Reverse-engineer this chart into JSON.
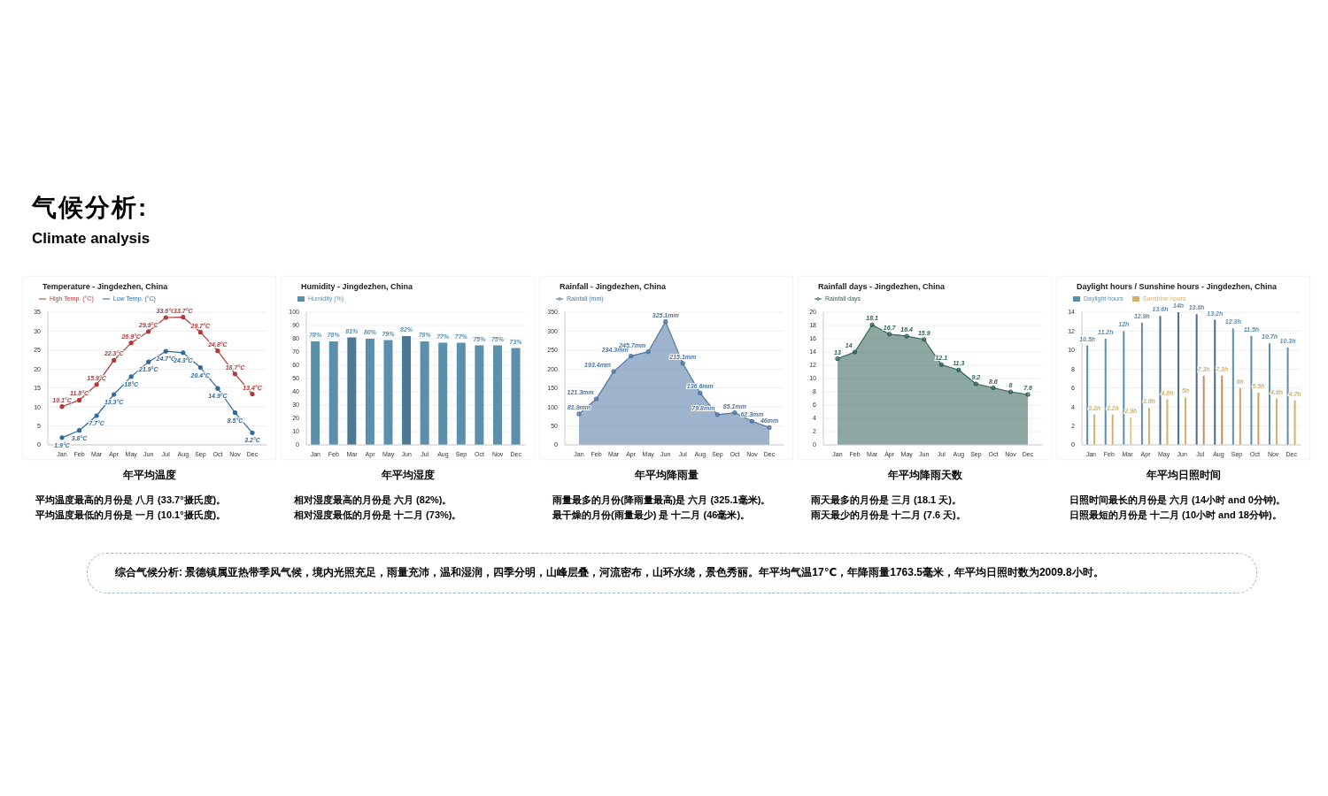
{
  "chart_data": [
    {
      "type": "other",
      "title": "气候分析:",
      "subtitle": "Climate analysis"
    },
    {
      "type": "line",
      "title": "Temperature - Jingdezhen, China",
      "categories": [
        "Jan",
        "Feb",
        "Mar",
        "Apr",
        "May",
        "Jun",
        "Jul",
        "Aug",
        "Sep",
        "Oct",
        "Nov",
        "Dec"
      ],
      "ylim": [
        0,
        35
      ],
      "yticks": [
        0,
        5,
        10,
        15,
        20,
        25,
        30,
        35
      ],
      "grid": "y",
      "legend": "top left",
      "marker": "circle",
      "series": [
        {
          "name": "Low Temp. (°C)",
          "color": "#2f6aa0",
          "values": [
            1.9,
            3.8,
            7.7,
            13.3,
            18,
            21.9,
            24.7,
            24.3,
            20.4,
            14.9,
            8.5,
            3.2
          ],
          "value_labels": [
            "1.9°C",
            "3.8°C",
            "7.7°C",
            "13.3°C",
            "18°C",
            "21.9°C",
            "24.7°C",
            "24.3°C",
            "20.4°C",
            "14.9°C",
            "8.5°C",
            "3.2°C"
          ]
        },
        {
          "name": "High Temp. (°C)",
          "color": "#b23a3a",
          "values": [
            10.1,
            11.8,
            15.9,
            22.3,
            26.9,
            29.9,
            33.6,
            33.7,
            29.7,
            24.8,
            18.7,
            13.4
          ],
          "value_labels": [
            "10.1°C",
            "11.8°C",
            "15.9°C",
            "22.3°C",
            "26.9°C",
            "29.9°C",
            "33.6°C",
            "33.7°C",
            "29.7°C",
            "24.8°C",
            "18.7°C",
            "13.4°C"
          ]
        }
      ],
      "annotations": [
        "年平均温度",
        "平均温度最高的月份是 八月 (33.7°摄氏度)。",
        "平均温度最低的月份是 一月 (10.1°摄氏度)。"
      ]
    },
    {
      "type": "bar",
      "title": "Humidity - Jingdezhen, China",
      "categories": [
        "Jan",
        "Feb",
        "Mar",
        "Apr",
        "May",
        "Jun",
        "Jul",
        "Aug",
        "Sep",
        "Oct",
        "Nov",
        "Dec"
      ],
      "ylim": [
        0,
        100
      ],
      "yticks": [
        0,
        10,
        20,
        30,
        40,
        50,
        60,
        70,
        80,
        90,
        100
      ],
      "grid": "y",
      "legend": "top left",
      "series": [
        {
          "name": "Humidity (%)",
          "color": "#5b8fac",
          "colors": [
            "#5b8fac",
            "#5b8fac",
            "#4d7894",
            "#5b8fac",
            "#5b8fac",
            "#4d7894",
            "#5b8fac",
            "#5b8fac",
            "#5b8fac",
            "#5b8fac",
            "#5b8fac",
            "#5b8fac"
          ],
          "values": [
            78,
            78,
            81,
            80,
            79,
            82,
            78,
            77,
            77,
            75,
            75,
            73
          ],
          "value_labels": [
            "78%",
            "78%",
            "81%",
            "80%",
            "79%",
            "82%",
            "78%",
            "77%",
            "77%",
            "75%",
            "75%",
            "73%"
          ]
        }
      ],
      "annotations": [
        "年平均湿度",
        "相对湿度最高的月份是 六月 (82%)。",
        "相对湿度最低的月份是 十二月 (73%)。"
      ]
    },
    {
      "type": "area",
      "title": "Rainfall - Jingdezhen, China",
      "categories": [
        "Jan",
        "Feb",
        "Mar",
        "Apr",
        "May",
        "Jun",
        "Jul",
        "Aug",
        "Sep",
        "Oct",
        "Nov",
        "Dec"
      ],
      "ylim": [
        0,
        350
      ],
      "yticks": [
        0,
        50,
        100,
        150,
        200,
        250,
        300,
        350
      ],
      "grid": "y",
      "legend": "top left",
      "marker": "circle",
      "series": [
        {
          "name": "Rainfall (mm)",
          "color": "#4f76a3",
          "values": [
            81.9,
            121.3,
            193.4,
            234.3,
            245.7,
            325.1,
            215.1,
            136.6,
            79.8,
            85.1,
            62.3,
            46
          ],
          "value_labels": [
            "81.9mm",
            "121.3mm",
            "193.4mm",
            "234.3mm",
            "245.7mm",
            "325.1mm",
            "215.1mm",
            "136.6mm",
            "79.8mm",
            "85.1mm",
            "62.3mm",
            "46mm"
          ]
        }
      ],
      "annotations": [
        "年平均降雨量",
        "雨量最多的月份(降雨量最高)是 六月 (325.1毫米)。",
        "最干燥的月份(雨量最少) 是 十二月 (46毫米)。"
      ]
    },
    {
      "type": "area",
      "title": "Rainfall days - Jingdezhen, China",
      "categories": [
        "Jan",
        "Feb",
        "Mar",
        "Apr",
        "May",
        "Jun",
        "Jul",
        "Aug",
        "Sep",
        "Oct",
        "Nov",
        "Dec"
      ],
      "ylim": [
        0,
        20
      ],
      "yticks": [
        0,
        2,
        4,
        6,
        8,
        10,
        12,
        14,
        16,
        18,
        20
      ],
      "grid": "y",
      "legend": "top left",
      "marker": "circle",
      "data_labels": true,
      "series": [
        {
          "name": "Rainfall days",
          "color": "#2f6155",
          "values": [
            13,
            14,
            18.1,
            16.7,
            16.4,
            15.9,
            12.1,
            11.3,
            9.2,
            8.6,
            8,
            7.6
          ]
        }
      ],
      "annotations": [
        "年平均降雨天数",
        "雨天最多的月份是 三月 (18.1 天)。",
        "雨天最少的月份是 十二月 (7.6 天)。"
      ]
    },
    {
      "type": "bar",
      "title": "Daylight hours / Sunshine hours - Jingdezhen, China",
      "categories": [
        "Jan",
        "Feb",
        "Mar",
        "Apr",
        "May",
        "Jun",
        "Jul",
        "Aug",
        "Sep",
        "Oct",
        "Nov",
        "Dec"
      ],
      "ylim": [
        0,
        14
      ],
      "yticks": [
        0,
        2,
        4,
        6,
        8,
        10,
        12,
        14
      ],
      "grid": "y",
      "legend": "top left",
      "series": [
        {
          "name": "Daylight hours",
          "color": "#5b8fac",
          "colors": [
            "#5b8fac",
            "#5b8fac",
            "#5b8fac",
            "#5b8fac",
            "#4a6d8c",
            "#4a6d8c",
            "#4a6d8c",
            "#4a6d8c",
            "#5b8fac",
            "#5b8fac",
            "#5b8fac",
            "#5b8fac"
          ],
          "values": [
            10.5,
            11.2,
            12,
            12.9,
            13.6,
            14,
            13.8,
            13.2,
            12.3,
            11.5,
            10.7,
            10.3
          ],
          "value_labels": [
            "10.5h",
            "11.2h",
            "12h",
            "12.9h",
            "13.6h",
            "14h",
            "13.8h",
            "13.2h",
            "12.3h",
            "11.5h",
            "10.7h",
            "10.3h"
          ]
        },
        {
          "name": "Sunshine hours",
          "color": "#d2b26a",
          "colors": [
            "#d2b26a",
            "#d2b26a",
            "#dccb8e",
            "#d2b26a",
            "#d2b26a",
            "#d2b26a",
            "#c98b5b",
            "#c98b5b",
            "#d2a060",
            "#d2a060",
            "#d2b26a",
            "#d2b26a"
          ],
          "values": [
            3.2,
            3.2,
            2.9,
            3.9,
            4.8,
            5,
            7.3,
            7.3,
            6,
            5.5,
            4.9,
            4.7
          ],
          "value_labels": [
            "3.2h",
            "3.2h",
            "2.9h",
            "3.9h",
            "4.8h",
            "5h",
            "7.3h",
            "7.3h",
            "6h",
            "5.5h",
            "4.9h",
            "4.7h"
          ]
        }
      ],
      "annotations": [
        "年平均日照时间",
        "日照时间最长的月份是 六月 (14小时 and 0分钟)。",
        "日照最短的月份是 十二月 (10小时 and 18分钟)。"
      ]
    },
    {
      "type": "other",
      "annotations": [
        "综合气候分析:  景德镇属亚热带季风气候，境内光照充足，雨量充沛，温和湿润，四季分明，山峰层叠，河流密布，山环水绕，景色秀丽。年平均气温17℃，年降雨量1763.5毫米，年平均日照时数为2009.8小时。"
      ]
    }
  ]
}
